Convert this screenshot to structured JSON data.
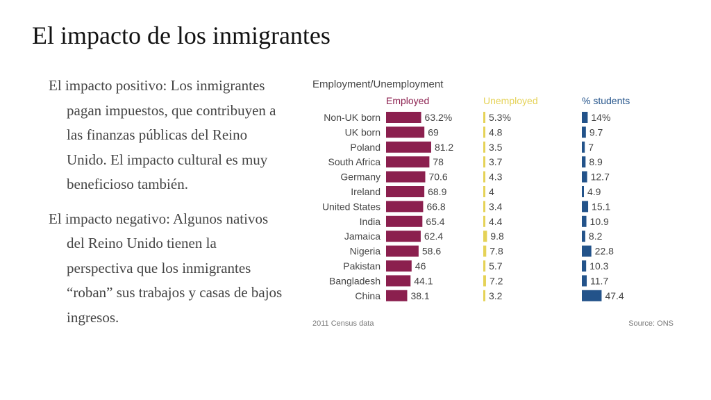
{
  "slide": {
    "title": "El impacto de los inmigrantes",
    "bullets": [
      "El impacto positivo: Los inmigrantes pagan impuestos, que contribuyen a las finanzas públicas del Reino Unido. El impacto cultural es muy beneficioso también.",
      "El impacto negativo: Algunos nativos del Reino Unido tienen la perspectiva que los inmigrantes “roban” sus trabajos y casas de bajos ingresos."
    ]
  },
  "colors": {
    "employed": "#8b1f4e",
    "unemployed": "#e5d257",
    "students": "#23538a",
    "text": "#444444",
    "muted": "#777777"
  },
  "chart_data": {
    "type": "bar",
    "title": "Employment/Unemployment",
    "footer_left": "2011 Census data",
    "footer_right": "Source: ONS",
    "categories": [
      "Non-UK born",
      "UK born",
      "Poland",
      "South Africa",
      "Germany",
      "Ireland",
      "United States",
      "India",
      "Jamaica",
      "Nigeria",
      "Pakistan",
      "Bangladesh",
      "China"
    ],
    "series": [
      {
        "name": "Employed",
        "values": [
          63.2,
          69,
          81.2,
          78,
          70.6,
          68.9,
          66.8,
          65.4,
          62.4,
          58.6,
          46,
          44.1,
          38.1
        ],
        "labels": [
          "63.2%",
          "69",
          "81.2",
          "78",
          "70.6",
          "68.9",
          "66.8",
          "65.4",
          "62.4",
          "58.6",
          "46",
          "44.1",
          "38.1"
        ]
      },
      {
        "name": "Unemployed",
        "values": [
          5.3,
          4.8,
          3.5,
          3.7,
          4.3,
          4,
          3.4,
          4.4,
          9.8,
          7.8,
          5.7,
          7.2,
          3.2
        ],
        "labels": [
          "5.3%",
          "4.8",
          "3.5",
          "3.7",
          "4.3",
          "4",
          "3.4",
          "4.4",
          "9.8",
          "7.8",
          "5.7",
          "7.2",
          "3.2"
        ]
      },
      {
        "name": "% students",
        "values": [
          14,
          9.7,
          7,
          8.9,
          12.7,
          4.9,
          15.1,
          10.9,
          8.2,
          22.8,
          10.3,
          11.7,
          47.4
        ],
        "labels": [
          "14%",
          "9.7",
          "7",
          "8.9",
          "12.7",
          "4.9",
          "15.1",
          "10.9",
          "8.2",
          "22.8",
          "10.3",
          "11.7",
          "47.4"
        ]
      }
    ],
    "grid": false,
    "legend": "top"
  }
}
